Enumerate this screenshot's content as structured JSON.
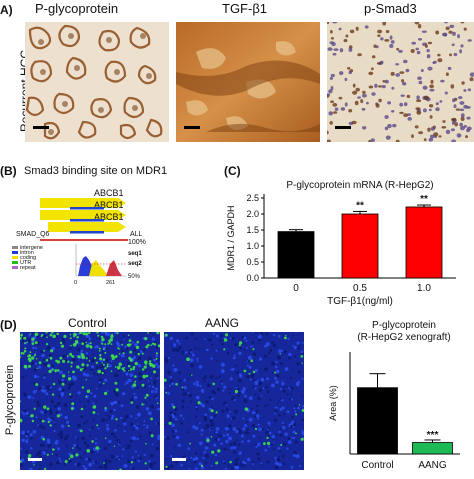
{
  "panel_a": {
    "letter": "A)",
    "row_label": "Recurrent HCC",
    "columns": [
      "P-glycoprotein",
      "TGF-β1",
      "p-Smad3"
    ]
  },
  "panel_b": {
    "letter": "(B)",
    "title": "Smad3 binding site on MDR1",
    "gene_labels": [
      "ABCB1",
      "ABCB1",
      "ABCB1"
    ],
    "motif_label": "SMAD_Q6",
    "all_label": "ALL",
    "pct_100": "100%",
    "pct_50": "50%",
    "legend": [
      "intergene",
      "intron",
      "coding",
      "UTR",
      "repeat"
    ],
    "seq_labels": [
      "seq1",
      "seq2"
    ],
    "axis_ticks": [
      "0",
      "261"
    ]
  },
  "panel_c": {
    "letter": "(C)",
    "chart_data": {
      "type": "bar",
      "title": "P-glycoprotein mRNA (R-HepG2)",
      "categories": [
        "0",
        "0.5",
        "1.0"
      ],
      "values": [
        1.45,
        2.0,
        2.22
      ],
      "errors": [
        0.06,
        0.08,
        0.06
      ],
      "significance": [
        "",
        "**",
        "**"
      ],
      "xlabel": "TGF-β1(ng/ml)",
      "ylabel": "MDR1 / GAPDH",
      "ylim": [
        0,
        2.5
      ],
      "yticks": [
        "0.0",
        "0.5",
        "1.0",
        "1.5",
        "2.0",
        "2.5"
      ],
      "colors": [
        "#000000",
        "#ff0000",
        "#ff0000"
      ]
    }
  },
  "panel_d": {
    "letter": "(D)",
    "row_label": "P-glycoprotein",
    "columns": [
      "Control",
      "AANG"
    ],
    "chart_data": {
      "type": "bar",
      "title": "P-glycoprotein",
      "subtitle": "(R-HepG2 xenograft)",
      "categories": [
        "Control",
        "AANG"
      ],
      "values": [
        52,
        9
      ],
      "errors": [
        11,
        2
      ],
      "significance": [
        "",
        "***"
      ],
      "ylabel": "Area (%)",
      "ylim": [
        0,
        80
      ],
      "colors": [
        "#000000",
        "#1db954"
      ]
    }
  }
}
